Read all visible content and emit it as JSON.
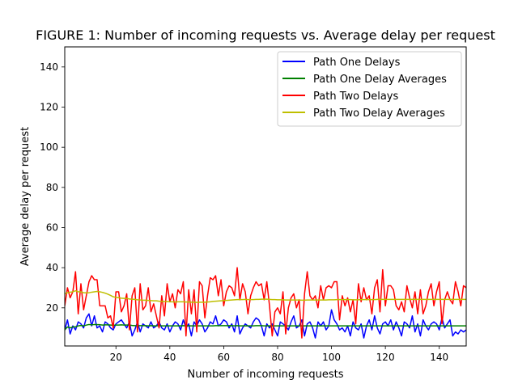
{
  "chart_data": {
    "type": "line",
    "title": "FIGURE 1: Number of incoming requests vs. Average delay per request",
    "xlabel": "Number of incoming requests",
    "ylabel": "Average delay per request",
    "xlim": [
      1,
      150
    ],
    "ylim": [
      1,
      150
    ],
    "xticks": [
      20,
      40,
      60,
      80,
      100,
      120,
      140
    ],
    "yticks": [
      20,
      40,
      60,
      80,
      100,
      120,
      140
    ],
    "grid": false,
    "legend_position": "top-right",
    "series": [
      {
        "name": "Path One Delays",
        "color": "#0000ff",
        "x": [
          1,
          2,
          3,
          4,
          5,
          6,
          7,
          8,
          9,
          10,
          11,
          12,
          13,
          14,
          15,
          16,
          17,
          18,
          19,
          20,
          21,
          22,
          23,
          24,
          25,
          26,
          27,
          28,
          29,
          30,
          31,
          32,
          33,
          34,
          35,
          36,
          37,
          38,
          39,
          40,
          41,
          42,
          43,
          44,
          45,
          46,
          47,
          48,
          49,
          50,
          51,
          52,
          53,
          54,
          55,
          56,
          57,
          58,
          59,
          60,
          61,
          62,
          63,
          64,
          65,
          66,
          67,
          68,
          69,
          70,
          71,
          72,
          73,
          74,
          75,
          76,
          77,
          78,
          79,
          80,
          81,
          82,
          83,
          84,
          85,
          86,
          87,
          88,
          89,
          90,
          91,
          92,
          93,
          94,
          95,
          96,
          97,
          98,
          99,
          100,
          101,
          102,
          103,
          104,
          105,
          106,
          107,
          108,
          109,
          110,
          111,
          112,
          113,
          114,
          115,
          116,
          117,
          118,
          119,
          120,
          121,
          122,
          123,
          124,
          125,
          126,
          127,
          128,
          129,
          130,
          131,
          132,
          133,
          134,
          135,
          136,
          137,
          138,
          139,
          140,
          141,
          142,
          143,
          144,
          145,
          146,
          147,
          148,
          149,
          150
        ],
        "y": [
          9,
          14,
          7,
          11,
          9,
          13,
          12,
          10,
          15,
          17,
          11,
          16,
          10,
          11,
          8,
          13,
          12,
          10,
          9,
          12,
          13,
          14,
          12,
          10,
          13,
          6,
          9,
          13,
          8,
          12,
          11,
          10,
          13,
          10,
          11,
          13,
          10,
          9,
          12,
          8,
          11,
          13,
          12,
          9,
          14,
          10,
          12,
          6,
          13,
          11,
          14,
          12,
          8,
          10,
          13,
          12,
          16,
          11,
          12,
          14,
          13,
          10,
          12,
          8,
          16,
          7,
          10,
          12,
          11,
          10,
          13,
          15,
          14,
          11,
          6,
          12,
          10,
          12,
          9,
          6,
          13,
          12,
          11,
          9,
          13,
          16,
          10,
          11,
          14,
          6,
          12,
          13,
          10,
          5,
          13,
          11,
          13,
          9,
          11,
          19,
          14,
          12,
          9,
          10,
          8,
          11,
          6,
          13,
          10,
          9,
          12,
          5,
          11,
          14,
          9,
          16,
          10,
          7,
          12,
          13,
          11,
          14,
          9,
          13,
          10,
          6,
          13,
          12,
          10,
          16,
          8,
          12,
          6,
          14,
          11,
          9,
          12,
          13,
          12,
          9,
          15,
          10,
          12,
          14,
          6,
          8,
          7,
          9,
          8,
          9
        ]
      },
      {
        "name": "Path One Delay Averages",
        "color": "#008000",
        "x": [
          1,
          2,
          3,
          4,
          5,
          6,
          7,
          8,
          9,
          10,
          11,
          12,
          13,
          14,
          15,
          16,
          17,
          18,
          19,
          20,
          21,
          22,
          23,
          24,
          25,
          26,
          27,
          28,
          29,
          30,
          31,
          32,
          33,
          34,
          35,
          36,
          37,
          38,
          39,
          40,
          41,
          42,
          43,
          44,
          45,
          46,
          47,
          48,
          49,
          50,
          51,
          52,
          53,
          54,
          55,
          56,
          57,
          58,
          59,
          60,
          61,
          62,
          63,
          64,
          65,
          66,
          67,
          68,
          69,
          70,
          71,
          72,
          73,
          74,
          75,
          76,
          77,
          78,
          79,
          80,
          81,
          82,
          83,
          84,
          85,
          86,
          87,
          88,
          89,
          90,
          91,
          92,
          93,
          94,
          95,
          96,
          97,
          98,
          99,
          100,
          101,
          102,
          103,
          104,
          105,
          106,
          107,
          108,
          109,
          110,
          111,
          112,
          113,
          114,
          115,
          116,
          117,
          118,
          119,
          120,
          121,
          122,
          123,
          124,
          125,
          126,
          127,
          128,
          129,
          130,
          131,
          132,
          133,
          134,
          135,
          136,
          137,
          138,
          139,
          140,
          141,
          142,
          143,
          144,
          145,
          146,
          147,
          148,
          149,
          150
        ],
        "y": [
          9,
          10.5,
          10,
          10.5,
          10.5,
          11,
          11.2,
          11,
          11.4,
          11.7,
          11.5,
          11.7,
          11.6,
          11.6,
          11.4,
          11.5,
          11.5,
          11.4,
          11.3,
          11.4,
          11.4,
          11.5,
          11.4,
          11.4,
          11.4,
          11.2,
          11.1,
          11.1,
          11.1,
          11.1,
          11.1,
          11,
          11.1,
          11,
          11,
          11.1,
          11,
          11,
          11,
          11,
          11,
          11,
          11,
          11,
          11.1,
          11,
          11,
          11,
          11,
          11,
          11,
          11,
          11,
          11,
          11,
          11,
          11.1,
          11.1,
          11.1,
          11.1,
          11.1,
          11.1,
          11.1,
          11,
          11.1,
          11,
          11,
          11,
          11,
          11,
          11,
          11.1,
          11.1,
          11.1,
          11,
          11,
          11,
          11,
          11,
          11,
          11,
          11,
          11,
          11,
          11,
          11,
          11,
          11,
          11,
          11,
          11,
          11,
          11,
          11,
          11,
          11,
          11,
          11,
          11,
          11,
          11,
          11,
          11,
          11,
          11,
          11,
          11,
          11,
          11,
          11,
          11,
          11,
          11,
          11,
          11,
          11,
          11,
          11,
          11,
          11,
          11,
          11,
          11,
          11,
          11,
          11,
          11,
          11,
          11,
          11,
          11,
          11,
          11,
          11,
          11,
          11,
          11,
          11,
          11,
          11,
          11,
          11,
          11,
          11,
          11,
          11,
          11,
          11,
          11,
          11
        ]
      },
      {
        "name": "Path Two Delays",
        "color": "#ff0000",
        "x": [
          1,
          2,
          3,
          4,
          5,
          6,
          7,
          8,
          9,
          10,
          11,
          12,
          13,
          14,
          15,
          16,
          17,
          18,
          19,
          20,
          21,
          22,
          23,
          24,
          25,
          26,
          27,
          28,
          29,
          30,
          31,
          32,
          33,
          34,
          35,
          36,
          37,
          38,
          39,
          40,
          41,
          42,
          43,
          44,
          45,
          46,
          47,
          48,
          49,
          50,
          51,
          52,
          53,
          54,
          55,
          56,
          57,
          58,
          59,
          60,
          61,
          62,
          63,
          64,
          65,
          66,
          67,
          68,
          69,
          70,
          71,
          72,
          73,
          74,
          75,
          76,
          77,
          78,
          79,
          80,
          81,
          82,
          83,
          84,
          85,
          86,
          87,
          88,
          89,
          90,
          91,
          92,
          93,
          94,
          95,
          96,
          97,
          98,
          99,
          100,
          101,
          102,
          103,
          104,
          105,
          106,
          107,
          108,
          109,
          110,
          111,
          112,
          113,
          114,
          115,
          116,
          117,
          118,
          119,
          120,
          121,
          122,
          123,
          124,
          125,
          126,
          127,
          128,
          129,
          130,
          131,
          132,
          133,
          134,
          135,
          136,
          137,
          138,
          139,
          140,
          141,
          142,
          143,
          144,
          145,
          146,
          147,
          148,
          149,
          150
        ],
        "y": [
          21,
          30,
          25,
          28,
          38,
          17,
          32,
          19,
          26,
          33,
          36,
          34,
          34,
          21,
          21,
          21,
          15,
          16,
          10,
          28,
          28,
          18,
          21,
          27,
          9,
          26,
          30,
          8,
          32,
          19,
          21,
          30,
          18,
          22,
          16,
          10,
          26,
          16,
          32,
          23,
          27,
          20,
          29,
          27,
          33,
          6,
          29,
          17,
          29,
          8,
          33,
          31,
          15,
          26,
          35,
          34,
          36,
          26,
          34,
          21,
          28,
          31,
          30,
          26,
          40,
          24,
          32,
          28,
          17,
          26,
          30,
          33,
          31,
          32,
          24,
          33,
          21,
          6,
          18,
          20,
          17,
          28,
          7,
          20,
          25,
          27,
          20,
          24,
          5,
          27,
          38,
          26,
          24,
          26,
          20,
          31,
          24,
          30,
          31,
          30,
          33,
          33,
          14,
          26,
          21,
          25,
          18,
          24,
          12,
          32,
          23,
          30,
          24,
          26,
          17,
          30,
          34,
          18,
          39,
          21,
          31,
          31,
          29,
          21,
          19,
          23,
          18,
          31,
          25,
          20,
          28,
          17,
          29,
          17,
          21,
          28,
          32,
          21,
          28,
          33,
          12,
          24,
          28,
          24,
          22,
          33,
          28,
          21,
          31,
          30
        ]
      },
      {
        "name": "Path Two Delay Averages",
        "color": "#bfbf00",
        "x": [
          1,
          2,
          3,
          4,
          5,
          6,
          7,
          8,
          9,
          10,
          11,
          12,
          13,
          14,
          15,
          16,
          17,
          18,
          19,
          20,
          21,
          22,
          23,
          24,
          25,
          26,
          27,
          28,
          29,
          30,
          31,
          32,
          33,
          34,
          35,
          36,
          37,
          38,
          39,
          40,
          41,
          42,
          43,
          44,
          45,
          46,
          47,
          48,
          49,
          50,
          51,
          52,
          53,
          54,
          55,
          56,
          57,
          58,
          59,
          60,
          61,
          62,
          63,
          64,
          65,
          66,
          67,
          68,
          69,
          70,
          71,
          72,
          73,
          74,
          75,
          76,
          77,
          78,
          79,
          80,
          81,
          82,
          83,
          84,
          85,
          86,
          87,
          88,
          89,
          90,
          91,
          92,
          93,
          94,
          95,
          96,
          97,
          98,
          99,
          100,
          101,
          102,
          103,
          104,
          105,
          106,
          107,
          108,
          109,
          110,
          111,
          112,
          113,
          114,
          115,
          116,
          117,
          118,
          119,
          120,
          121,
          122,
          123,
          124,
          125,
          126,
          127,
          128,
          129,
          130,
          131,
          132,
          133,
          134,
          135,
          136,
          137,
          138,
          139,
          140,
          141,
          142,
          143,
          144,
          145,
          146,
          147,
          148,
          149,
          150
        ],
        "y": [
          27,
          27.5,
          27.8,
          28,
          28.5,
          28,
          28,
          27.5,
          27.5,
          27.5,
          27.8,
          28,
          28.2,
          28,
          27.7,
          27.3,
          26.8,
          26.2,
          25.5,
          25.2,
          25,
          24.8,
          24.7,
          24.7,
          24.4,
          24.3,
          24.2,
          24,
          23.9,
          23.8,
          23.8,
          23.7,
          23.6,
          23.5,
          23.5,
          23.3,
          23.2,
          23.2,
          23.1,
          23,
          23,
          22.9,
          23,
          23,
          23,
          22.9,
          22.9,
          22.8,
          22.8,
          22.7,
          22.8,
          22.8,
          22.8,
          22.9,
          23,
          23.2,
          23.3,
          23.4,
          23.5,
          23.6,
          23.7,
          23.8,
          23.9,
          24,
          24.1,
          24.1,
          24.1,
          24.2,
          24.1,
          24.1,
          24.1,
          24.2,
          24.2,
          24.3,
          24.3,
          24.3,
          24.2,
          24.1,
          24.1,
          24,
          24,
          24,
          23.9,
          23.9,
          23.9,
          23.9,
          23.9,
          23.9,
          23.8,
          23.8,
          23.9,
          23.9,
          23.9,
          23.9,
          23.9,
          23.9,
          23.9,
          23.9,
          24,
          24,
          24,
          24.1,
          24.1,
          24.1,
          24.1,
          24.1,
          24.1,
          24,
          24,
          24,
          24.1,
          24.1,
          24.1,
          24.1,
          24.1,
          24.1,
          24.2,
          24.2,
          24.2,
          24.2,
          24.2,
          24.2,
          24.2,
          24.2,
          24.2,
          24.2,
          24.2,
          24.2,
          24.2,
          24.2,
          24.2,
          24.2,
          24.2,
          24.2,
          24.2,
          24.2,
          24.2,
          24.2,
          24.2,
          24.2,
          24.2,
          24.2,
          24.2,
          24.2,
          24.2,
          24.2,
          24.2,
          24.2,
          24.2,
          24.2
        ]
      }
    ]
  }
}
